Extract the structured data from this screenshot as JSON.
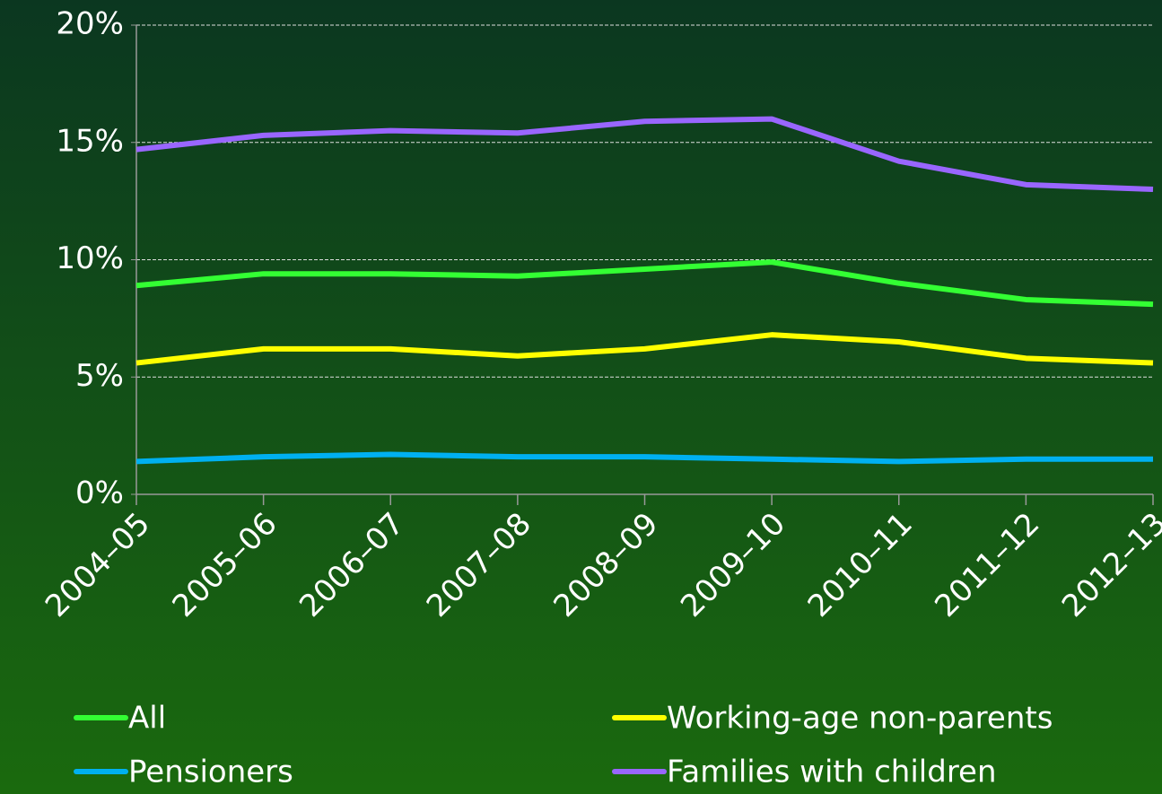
{
  "chart_data": {
    "type": "line",
    "categories": [
      "2004–05",
      "2005–06",
      "2006–07",
      "2007–08",
      "2008–09",
      "2009–10",
      "2010–11",
      "2011–12",
      "2012–13"
    ],
    "series": [
      {
        "name": "All",
        "color": "#33ff33",
        "values": [
          8.9,
          9.4,
          9.4,
          9.3,
          9.6,
          9.9,
          9.0,
          8.3,
          8.1
        ]
      },
      {
        "name": "Working-age non-parents",
        "color": "#ffff00",
        "values": [
          5.6,
          6.2,
          6.2,
          5.9,
          6.2,
          6.8,
          6.5,
          5.8,
          5.6
        ]
      },
      {
        "name": "Pensioners",
        "color": "#00b0f0",
        "values": [
          1.4,
          1.6,
          1.7,
          1.6,
          1.6,
          1.5,
          1.4,
          1.5,
          1.5
        ]
      },
      {
        "name": "Families with children",
        "color": "#9966ff",
        "values": [
          14.7,
          15.3,
          15.5,
          15.4,
          15.9,
          16.0,
          14.2,
          13.2,
          13.0
        ]
      }
    ],
    "ylim": [
      0,
      20
    ],
    "yticks": [
      {
        "value": 0,
        "label": "0%"
      },
      {
        "value": 5,
        "label": "5%"
      },
      {
        "value": 10,
        "label": "10%"
      },
      {
        "value": 15,
        "label": "15%"
      },
      {
        "value": 20,
        "label": "20%"
      }
    ],
    "grid": true,
    "legend": "bottom"
  }
}
